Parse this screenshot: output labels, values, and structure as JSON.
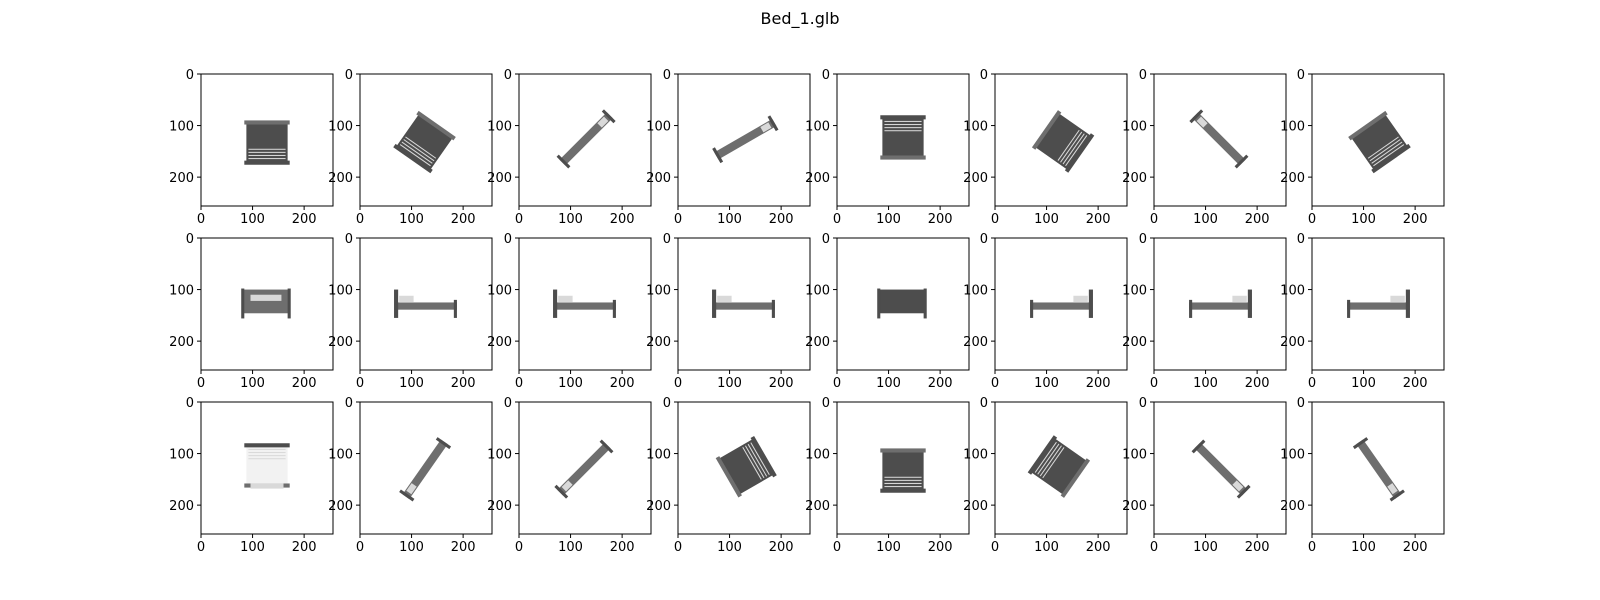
{
  "figure": {
    "title": "Bed_1.glb"
  },
  "axes": {
    "x_ticks": [
      "0",
      "100",
      "200"
    ],
    "y_ticks": [
      "0",
      "100",
      "200"
    ],
    "image_size": [
      256,
      256
    ],
    "rows": 3,
    "cols": 8
  },
  "views": [
    [
      "bed-top-front",
      "bed-iso-1",
      "bed-iso-2",
      "bed-iso-3",
      "bed-top-back",
      "bed-iso-4",
      "bed-iso-5",
      "bed-iso-6"
    ],
    [
      "bed-side-front",
      "bed-side-1",
      "bed-side-2",
      "bed-side-3",
      "bed-side-back",
      "bed-side-4",
      "bed-side-5",
      "bed-side-6"
    ],
    [
      "bed-under-front",
      "bed-under-1",
      "bed-under-2",
      "bed-under-3",
      "bed-under-back",
      "bed-under-4",
      "bed-under-5",
      "bed-under-6"
    ]
  ],
  "colors": {
    "bed_dark": "#4d4d4d",
    "bed_mid": "#6e6e6e",
    "bed_light": "#d9d9d9",
    "axes_frame": "#000000"
  }
}
